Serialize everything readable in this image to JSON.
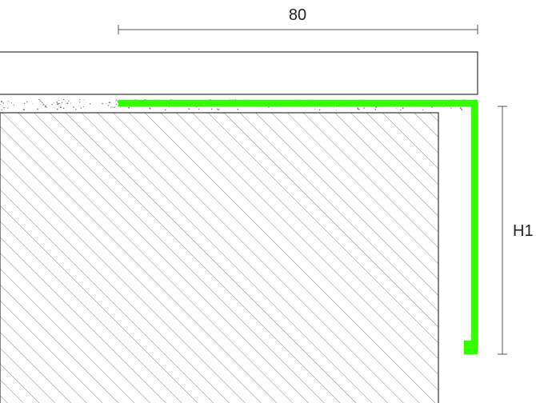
{
  "dimensions": {
    "width_label": "80",
    "height_label": "H1"
  },
  "colors": {
    "profile": "#33ff00",
    "line": "#333333",
    "hatch": "#8a8a8a",
    "dimension": "#555555",
    "background": "#ffffff"
  }
}
